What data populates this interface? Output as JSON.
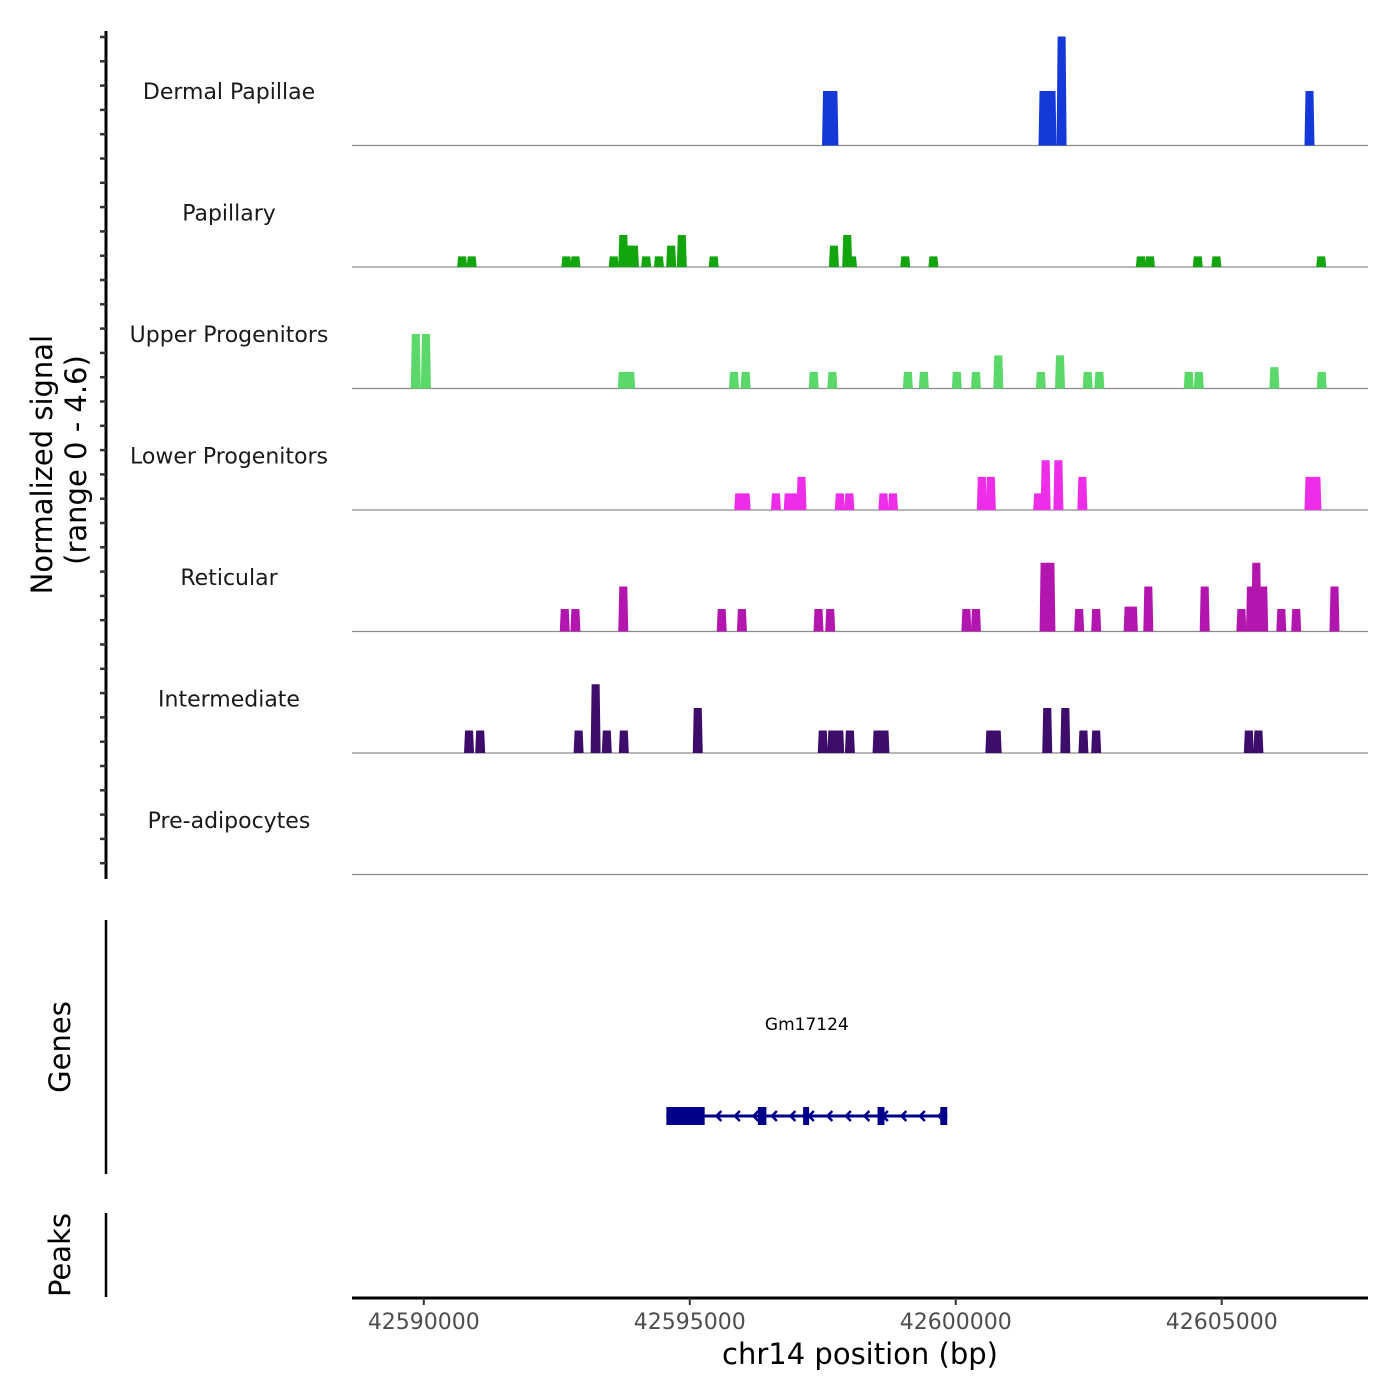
{
  "chart_data": {
    "type": "area",
    "title": "",
    "ylabel": "Normalized signal\n(range 0 - 4.6)",
    "ylabel_lines": [
      "Normalized signal",
      "(range 0 - 4.6)"
    ],
    "xlabel": "chr14 position (bp)",
    "chromosome": "chr14",
    "xlim": [
      42588650,
      42607750
    ],
    "ylim": [
      0,
      4.6
    ],
    "x_ticks": [
      42590000,
      42595000,
      42600000,
      42605000
    ],
    "x_tick_labels": [
      "42590000",
      "42595000",
      "42600000",
      "42605000"
    ],
    "tracks": [
      {
        "name": "Dermal Papillae",
        "color": "#1538d8",
        "peaks": [
          [
            42597580,
            2.3
          ],
          [
            42597700,
            2.3
          ],
          [
            42601650,
            2.3
          ],
          [
            42601800,
            2.3
          ],
          [
            42601990,
            4.6
          ],
          [
            42606650,
            2.3
          ]
        ]
      },
      {
        "name": "Papillary",
        "color": "#12a50d",
        "peaks": [
          [
            42590720,
            0.45
          ],
          [
            42590900,
            0.45
          ],
          [
            42592680,
            0.45
          ],
          [
            42592850,
            0.45
          ],
          [
            42593570,
            0.45
          ],
          [
            42593750,
            1.35
          ],
          [
            42593850,
            0.9
          ],
          [
            42593950,
            0.9
          ],
          [
            42594180,
            0.45
          ],
          [
            42594420,
            0.45
          ],
          [
            42594650,
            0.9
          ],
          [
            42594850,
            1.35
          ],
          [
            42595450,
            0.45
          ],
          [
            42597710,
            0.9
          ],
          [
            42597960,
            1.35
          ],
          [
            42598050,
            0.45
          ],
          [
            42599050,
            0.45
          ],
          [
            42599580,
            0.45
          ],
          [
            42603480,
            0.45
          ],
          [
            42603650,
            0.45
          ],
          [
            42604550,
            0.45
          ],
          [
            42604900,
            0.45
          ],
          [
            42606870,
            0.45
          ]
        ]
      },
      {
        "name": "Upper Progenitors",
        "color": "#5ad96a",
        "peaks": [
          [
            42589850,
            2.3
          ],
          [
            42590040,
            2.3
          ],
          [
            42593740,
            0.7
          ],
          [
            42593880,
            0.7
          ],
          [
            42595830,
            0.7
          ],
          [
            42596050,
            0.7
          ],
          [
            42597330,
            0.7
          ],
          [
            42597680,
            0.7
          ],
          [
            42599100,
            0.7
          ],
          [
            42599400,
            0.7
          ],
          [
            42600020,
            0.7
          ],
          [
            42600380,
            0.7
          ],
          [
            42600800,
            1.4
          ],
          [
            42601600,
            0.7
          ],
          [
            42601960,
            1.4
          ],
          [
            42602480,
            0.7
          ],
          [
            42602700,
            0.7
          ],
          [
            42604380,
            0.7
          ],
          [
            42604570,
            0.7
          ],
          [
            42605990,
            0.9
          ],
          [
            42606880,
            0.7
          ]
        ]
      },
      {
        "name": "Lower Progenitors",
        "color": "#ee2de8",
        "peaks": [
          [
            42595930,
            0.7
          ],
          [
            42596050,
            0.7
          ],
          [
            42596620,
            0.7
          ],
          [
            42596860,
            0.7
          ],
          [
            42597000,
            0.7
          ],
          [
            42597100,
            1.4
          ],
          [
            42597820,
            0.7
          ],
          [
            42598000,
            0.7
          ],
          [
            42598640,
            0.7
          ],
          [
            42598820,
            0.7
          ],
          [
            42600490,
            1.4
          ],
          [
            42600660,
            1.4
          ],
          [
            42601550,
            0.7
          ],
          [
            42601690,
            2.1
          ],
          [
            42601930,
            2.1
          ],
          [
            42602380,
            1.4
          ],
          [
            42606650,
            1.4
          ],
          [
            42606780,
            1.4
          ]
        ]
      },
      {
        "name": "Reticular",
        "color": "#b316ae",
        "peaks": [
          [
            42592650,
            0.95
          ],
          [
            42592850,
            0.95
          ],
          [
            42593750,
            1.9
          ],
          [
            42595600,
            0.95
          ],
          [
            42595980,
            0.95
          ],
          [
            42597420,
            0.95
          ],
          [
            42597640,
            0.95
          ],
          [
            42600200,
            0.95
          ],
          [
            42600380,
            0.95
          ],
          [
            42601670,
            2.9
          ],
          [
            42601780,
            2.9
          ],
          [
            42602320,
            0.95
          ],
          [
            42602640,
            0.95
          ],
          [
            42603250,
            1.05
          ],
          [
            42603330,
            1.05
          ],
          [
            42603620,
            1.9
          ],
          [
            42604680,
            1.9
          ],
          [
            42605370,
            0.95
          ],
          [
            42605550,
            1.9
          ],
          [
            42605650,
            2.9
          ],
          [
            42605780,
            1.9
          ],
          [
            42606120,
            0.95
          ],
          [
            42606400,
            0.95
          ],
          [
            42607120,
            1.9
          ]
        ]
      },
      {
        "name": "Intermediate",
        "color": "#3e0c6b",
        "peaks": [
          [
            42590850,
            0.95
          ],
          [
            42591060,
            0.95
          ],
          [
            42592910,
            0.95
          ],
          [
            42593230,
            2.9
          ],
          [
            42593440,
            0.95
          ],
          [
            42593760,
            0.95
          ],
          [
            42595150,
            1.9
          ],
          [
            42597500,
            0.95
          ],
          [
            42597680,
            0.95
          ],
          [
            42597810,
            0.95
          ],
          [
            42598010,
            0.95
          ],
          [
            42598530,
            0.95
          ],
          [
            42598660,
            0.95
          ],
          [
            42600650,
            0.95
          ],
          [
            42600770,
            0.95
          ],
          [
            42601720,
            1.9
          ],
          [
            42602060,
            1.9
          ],
          [
            42602400,
            0.95
          ],
          [
            42602640,
            0.95
          ],
          [
            42605510,
            0.95
          ],
          [
            42605690,
            0.95
          ]
        ]
      },
      {
        "name": "Pre-adipocytes",
        "color": "#6a6a6a",
        "peaks": []
      }
    ],
    "genes_track": {
      "label": "Genes",
      "color": "#00008b",
      "genes": [
        {
          "name": "Gm17124",
          "strand": "-",
          "start": 42594560,
          "end": 42599840,
          "exons": [
            [
              42594560,
              42595280
            ],
            [
              42596280,
              42596440
            ],
            [
              42597130,
              42597240
            ],
            [
              42598530,
              42598660
            ],
            [
              42599710,
              42599840
            ]
          ]
        }
      ]
    },
    "peaks_track": {
      "label": "Peaks",
      "regions": []
    }
  }
}
